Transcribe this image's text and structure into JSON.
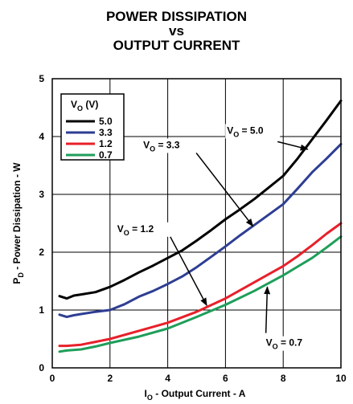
{
  "title_lines": [
    "POWER DISSIPATION",
    "vs",
    "OUTPUT CURRENT"
  ],
  "chart_data": {
    "type": "line",
    "title": "POWER DISSIPATION vs OUTPUT CURRENT",
    "xlabel_main": "I",
    "xlabel_sub": "O",
    "xlabel_rest": " - Output Current - A",
    "ylabel_main": "P",
    "ylabel_sub": "D",
    "ylabel_rest": " - Power Dissipation - W",
    "xlim": [
      0,
      10
    ],
    "ylim": [
      0,
      5
    ],
    "xticks": [
      0,
      2,
      4,
      6,
      8,
      10
    ],
    "yticks": [
      0,
      1,
      2,
      3,
      4,
      5
    ],
    "grid": true,
    "legend": {
      "title_main": "V",
      "title_sub": "O",
      "title_rest": " (V)",
      "placement": "top-left"
    },
    "series": [
      {
        "name": "5.0",
        "color": "#000000",
        "x": [
          0.25,
          0.5,
          0.75,
          1,
          1.5,
          2,
          2.5,
          3,
          3.5,
          4,
          4.5,
          5,
          5.5,
          6,
          6.5,
          7,
          7.5,
          8,
          8.5,
          9,
          9.5,
          10
        ],
        "y": [
          1.24,
          1.2,
          1.25,
          1.27,
          1.31,
          1.4,
          1.52,
          1.65,
          1.77,
          1.9,
          2.03,
          2.2,
          2.38,
          2.57,
          2.74,
          2.92,
          3.12,
          3.32,
          3.62,
          3.95,
          4.28,
          4.62
        ]
      },
      {
        "name": "3.3",
        "color": "#2e3e93",
        "x": [
          0.25,
          0.5,
          0.75,
          1,
          1.5,
          2,
          2.5,
          3,
          3.5,
          4,
          4.5,
          5,
          5.5,
          6,
          6.5,
          7,
          7.5,
          8,
          8.5,
          9,
          9.5,
          10
        ],
        "y": [
          0.92,
          0.88,
          0.91,
          0.93,
          0.97,
          1.0,
          1.1,
          1.23,
          1.33,
          1.45,
          1.58,
          1.74,
          1.92,
          2.1,
          2.29,
          2.47,
          2.65,
          2.83,
          3.1,
          3.38,
          3.62,
          3.87
        ]
      },
      {
        "name": "1.2",
        "color": "#e8202a",
        "x": [
          0.25,
          0.5,
          1,
          1.5,
          2,
          3,
          4,
          5,
          6,
          7,
          8,
          8.5,
          9,
          9.5,
          10
        ],
        "y": [
          0.38,
          0.38,
          0.4,
          0.45,
          0.5,
          0.64,
          0.78,
          0.97,
          1.2,
          1.48,
          1.76,
          1.93,
          2.12,
          2.32,
          2.5
        ]
      },
      {
        "name": "0.7",
        "color": "#1f9e5a",
        "x": [
          0.25,
          0.5,
          1,
          1.5,
          2,
          3,
          4,
          5,
          6,
          7,
          8,
          8.5,
          9,
          9.5,
          10
        ],
        "y": [
          0.28,
          0.3,
          0.32,
          0.37,
          0.43,
          0.54,
          0.68,
          0.88,
          1.09,
          1.33,
          1.6,
          1.75,
          1.9,
          2.08,
          2.27
        ]
      }
    ],
    "annotations": [
      {
        "label_main": "V",
        "label_sub": "O",
        "label_rest": " = 5.0",
        "text_at": [
          6.05,
          4.05
        ],
        "arrow_to": [
          8.85,
          3.78
        ]
      },
      {
        "label_main": "V",
        "label_sub": "O",
        "label_rest": " = 3.3",
        "text_at": [
          3.15,
          3.8
        ],
        "arrow_to": [
          6.95,
          2.45
        ]
      },
      {
        "label_main": "V",
        "label_sub": "O",
        "label_rest": " = 1.2",
        "text_at": [
          2.25,
          2.35
        ],
        "arrow_to": [
          5.35,
          1.08
        ]
      },
      {
        "label_main": "V",
        "label_sub": "O",
        "label_rest": " = 0.7",
        "text_at": [
          7.4,
          0.38
        ],
        "arrow_to": [
          7.45,
          1.4
        ]
      }
    ]
  }
}
